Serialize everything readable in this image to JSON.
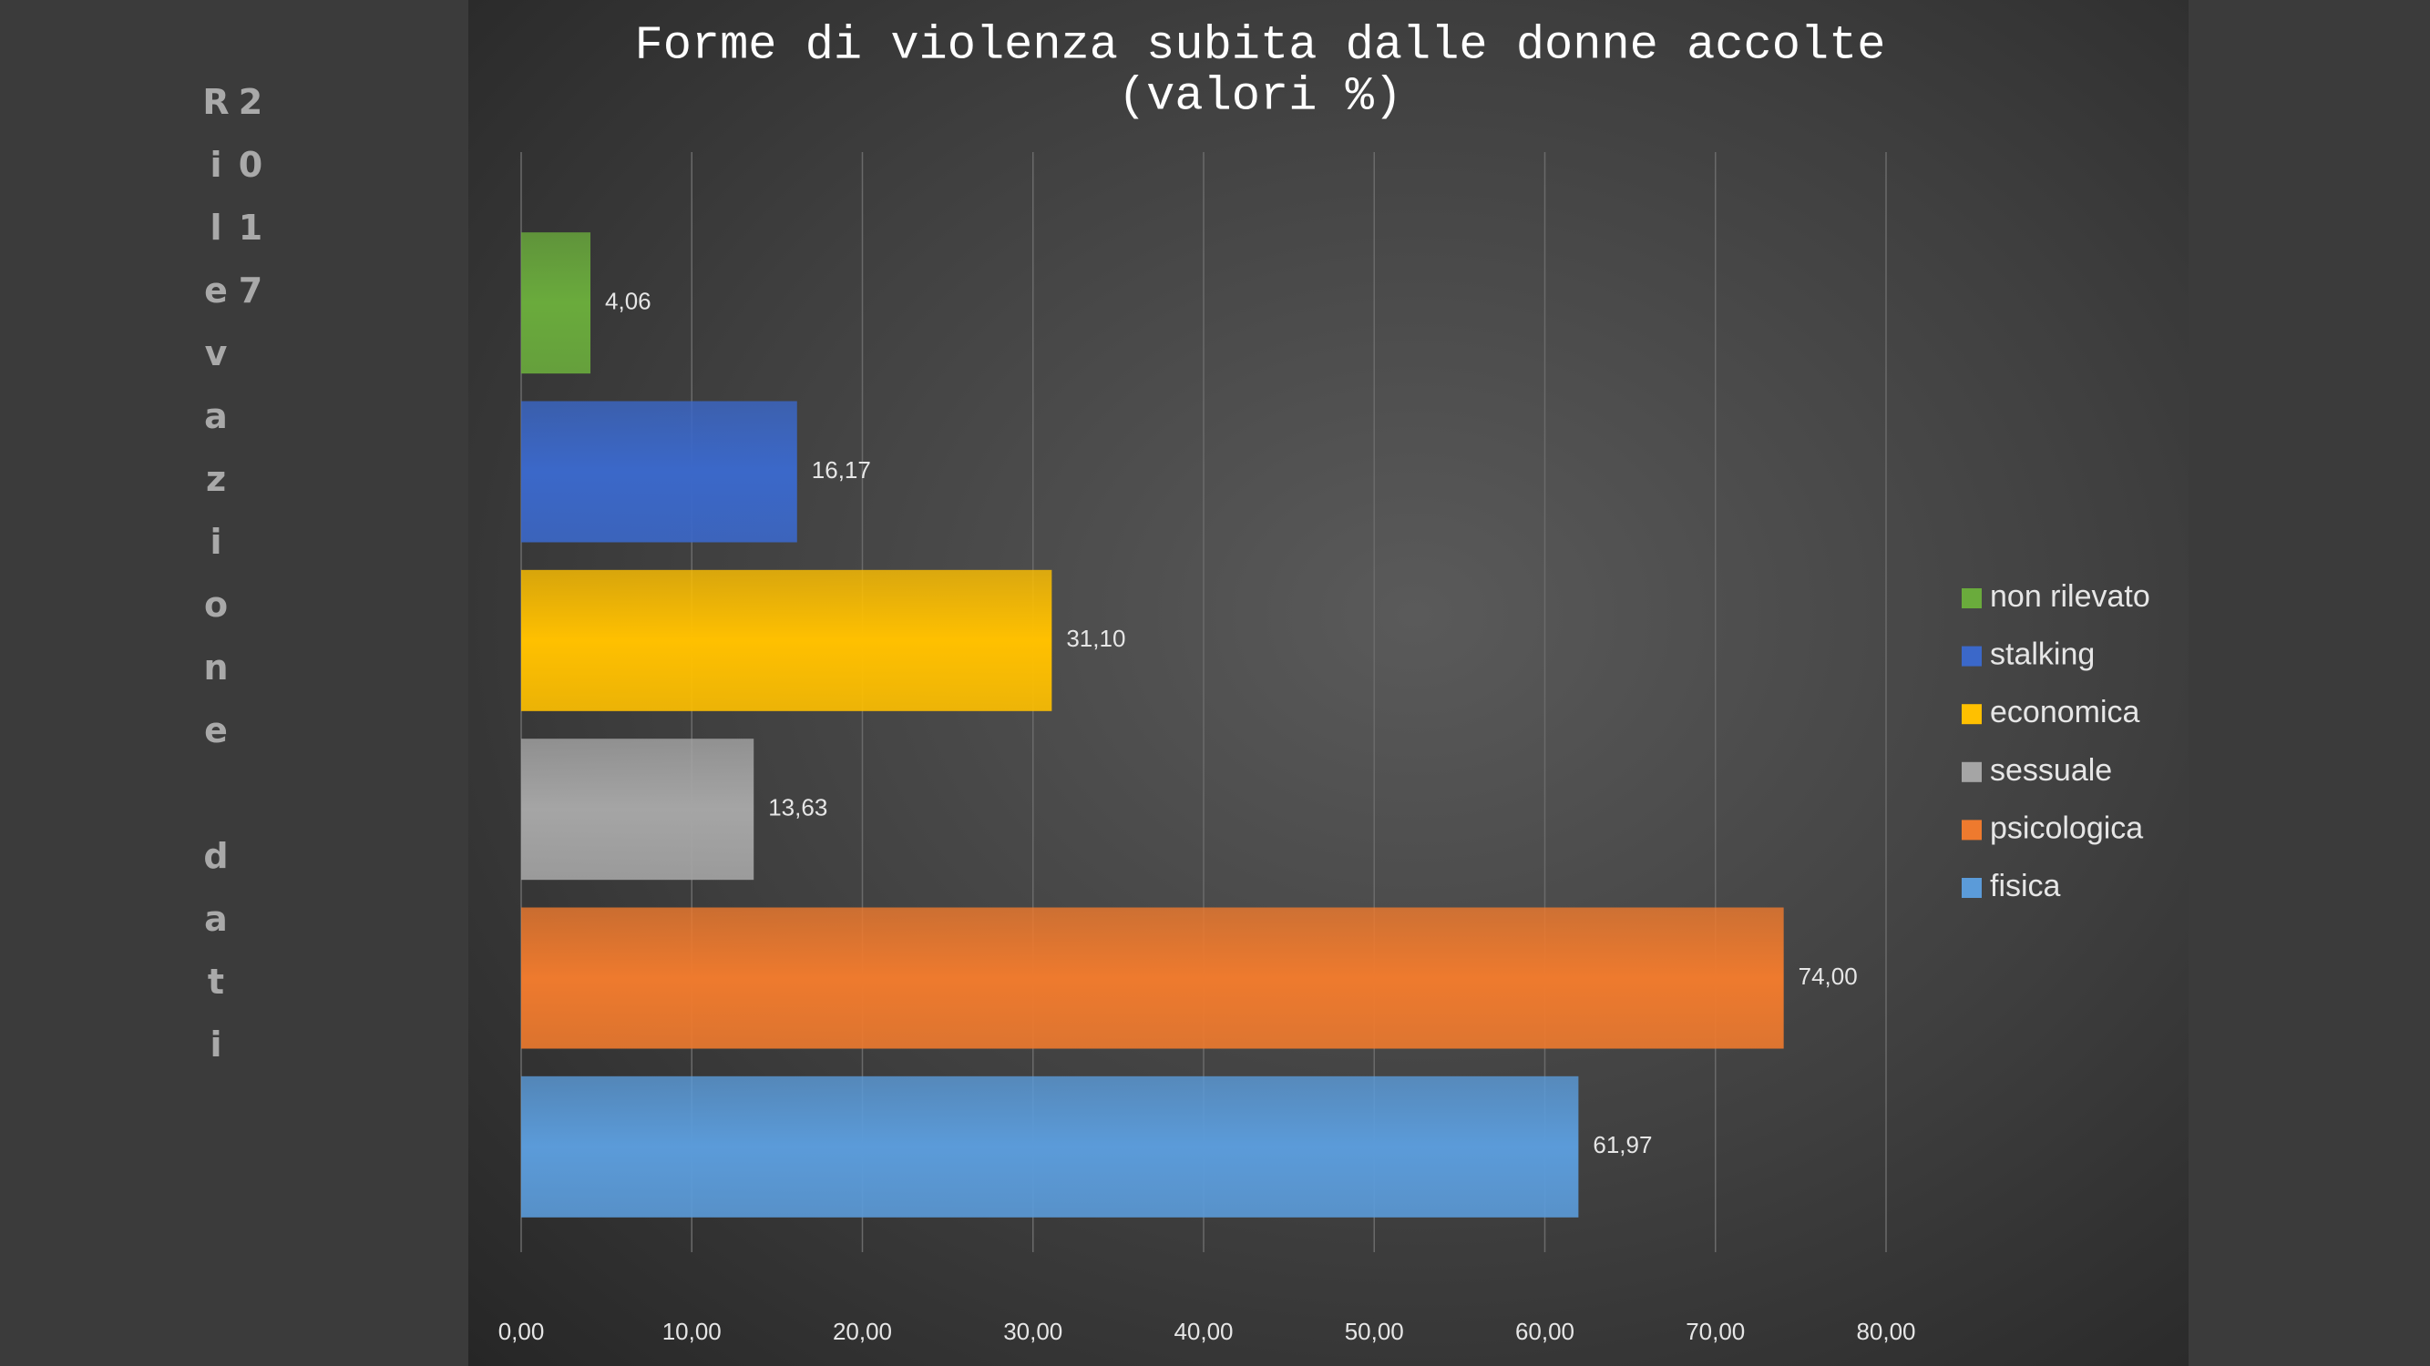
{
  "side_label": "Rilevazione dati 2017",
  "chart_data": {
    "type": "bar",
    "orientation": "horizontal",
    "title": [
      "Forme di violenza subita dalle donne accolte",
      "(valori %)"
    ],
    "categories": [
      null
    ],
    "series": [
      {
        "name": "non rilevato",
        "color": "#6aab3c",
        "values": [
          4.06
        ],
        "value_labels": [
          "4,06"
        ]
      },
      {
        "name": "stalking",
        "color": "#3b68c9",
        "values": [
          16.17
        ],
        "value_labels": [
          "16,17"
        ]
      },
      {
        "name": "economica",
        "color": "#ffc000",
        "values": [
          31.1
        ],
        "value_labels": [
          "31,10"
        ]
      },
      {
        "name": "sessuale",
        "color": "#a5a5a5",
        "values": [
          13.63
        ],
        "value_labels": [
          "13,63"
        ]
      },
      {
        "name": "psicologica",
        "color": "#ee7a2e",
        "values": [
          74.0
        ],
        "value_labels": [
          "74,00"
        ]
      },
      {
        "name": "fisica",
        "color": "#5b9bd9",
        "values": [
          61.97
        ],
        "value_labels": [
          "61,97"
        ]
      }
    ],
    "xlim": [
      0,
      80
    ],
    "xticks": [
      {
        "value": 0,
        "label": "0,00"
      },
      {
        "value": 10,
        "label": "10,00"
      },
      {
        "value": 20,
        "label": "20,00"
      },
      {
        "value": 30,
        "label": "30,00"
      },
      {
        "value": 40,
        "label": "40,00"
      },
      {
        "value": 50,
        "label": "50,00"
      },
      {
        "value": 60,
        "label": "60,00"
      },
      {
        "value": 70,
        "label": "70,00"
      },
      {
        "value": 80,
        "label": "80,00"
      }
    ],
    "grid": true,
    "legend": "right"
  }
}
